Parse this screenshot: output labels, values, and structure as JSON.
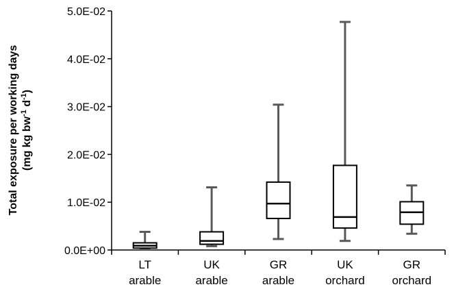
{
  "chart_data": {
    "type": "boxplot",
    "title": "",
    "xlabel": "",
    "ylabel": {
      "line1": "Total exposure  per working days",
      "line2_prefix": "(mg kg bw",
      "line2_sup1": "-1",
      "line2_mid": " d",
      "line2_sup2": "-1",
      "line2_suffix": ")"
    },
    "ylim": [
      0,
      0.05
    ],
    "yticks": [
      0,
      0.01,
      0.02,
      0.03,
      0.04,
      0.05
    ],
    "ytick_labels": [
      "0.0E+00",
      "1.0E-02",
      "2.0E-02",
      "3.0E-02",
      "4.0E-02",
      "5.0E-02"
    ],
    "grid": false,
    "legend": "none",
    "colors": {
      "box_stroke": "#000000",
      "whisker": "#595959",
      "axis": "#000000"
    },
    "categories": [
      {
        "line1": "LT",
        "line2": "arable"
      },
      {
        "line1": "UK",
        "line2": "arable"
      },
      {
        "line1": "GR",
        "line2": "arable"
      },
      {
        "line1": "UK",
        "line2": "orchard"
      },
      {
        "line1": "GR",
        "line2": "orchard"
      }
    ],
    "boxes": [
      {
        "min": 0.0002,
        "q1": 0.0004,
        "median": 0.0009,
        "q3": 0.0015,
        "max": 0.0038
      },
      {
        "min": 0.0008,
        "q1": 0.0012,
        "median": 0.0019,
        "q3": 0.0038,
        "max": 0.0131
      },
      {
        "min": 0.0023,
        "q1": 0.0066,
        "median": 0.0097,
        "q3": 0.0142,
        "max": 0.0304
      },
      {
        "min": 0.0019,
        "q1": 0.0046,
        "median": 0.0069,
        "q3": 0.0177,
        "max": 0.0477
      },
      {
        "min": 0.0034,
        "q1": 0.0054,
        "median": 0.0079,
        "q3": 0.0101,
        "max": 0.0135
      }
    ]
  }
}
